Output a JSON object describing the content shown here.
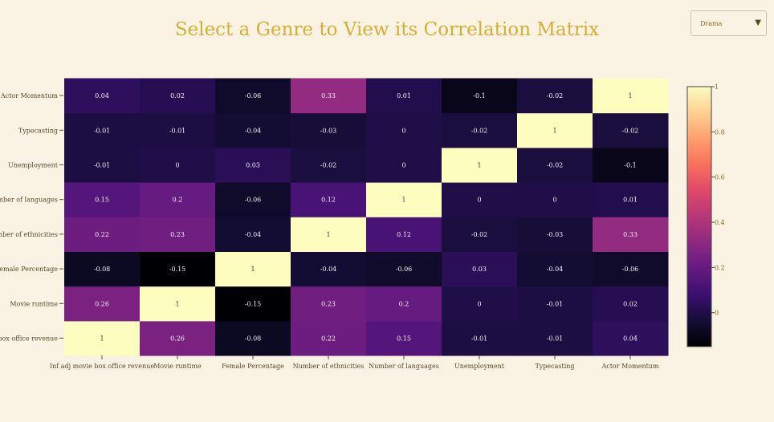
{
  "title": "Select a Genre to View its Correlation Matrix",
  "dropdown": {
    "selected": "Drama"
  },
  "colors": {
    "title": "#d4af37",
    "background": "#faf2e2",
    "colorscale": "magma"
  },
  "chart_data": {
    "type": "heatmap",
    "title": "",
    "x_labels": [
      "Inf adj movie box office revenue",
      "Movie runtime",
      "Female Percentage",
      "Number of ethnicities",
      "Number of languages",
      "Unemployment",
      "Typecasting",
      "Actor Momentum"
    ],
    "y_labels": [
      "Inf adj movie box office revenue",
      "Movie runtime",
      "Female Percentage",
      "Number of ethnicities",
      "Number of languages",
      "Unemployment",
      "Typecasting",
      "Actor Momentum"
    ],
    "y_label_display": [
      "ie box office revenue",
      "Movie runtime",
      "Female Percentage",
      "Number of ethnicities",
      "Number of languages",
      "Unemployment",
      "Typecasting",
      "Actor Momentum"
    ],
    "z": [
      [
        1,
        0.26,
        -0.08,
        0.22,
        0.15,
        -0.01,
        -0.01,
        0.04
      ],
      [
        0.26,
        1,
        -0.15,
        0.23,
        0.2,
        0,
        -0.01,
        0.02
      ],
      [
        -0.08,
        -0.15,
        1,
        -0.04,
        -0.06,
        0.03,
        -0.04,
        -0.06
      ],
      [
        0.22,
        0.23,
        -0.04,
        1,
        0.12,
        -0.02,
        -0.03,
        0.33
      ],
      [
        0.15,
        0.2,
        -0.06,
        0.12,
        1,
        0,
        0,
        0.01
      ],
      [
        -0.01,
        0,
        0.03,
        -0.02,
        0,
        1,
        -0.02,
        -0.1
      ],
      [
        -0.01,
        -0.01,
        -0.04,
        -0.03,
        0,
        -0.02,
        1,
        -0.02
      ],
      [
        0.04,
        0.02,
        -0.06,
        0.33,
        0.01,
        -0.1,
        -0.02,
        1
      ]
    ],
    "zmin": -0.15,
    "zmax": 1,
    "colorbar_ticks": [
      "0",
      "0.2",
      "0.4",
      "0.6",
      "0.8",
      "1"
    ],
    "colorbar_tick_values": [
      0,
      0.2,
      0.4,
      0.6,
      0.8,
      1
    ]
  }
}
